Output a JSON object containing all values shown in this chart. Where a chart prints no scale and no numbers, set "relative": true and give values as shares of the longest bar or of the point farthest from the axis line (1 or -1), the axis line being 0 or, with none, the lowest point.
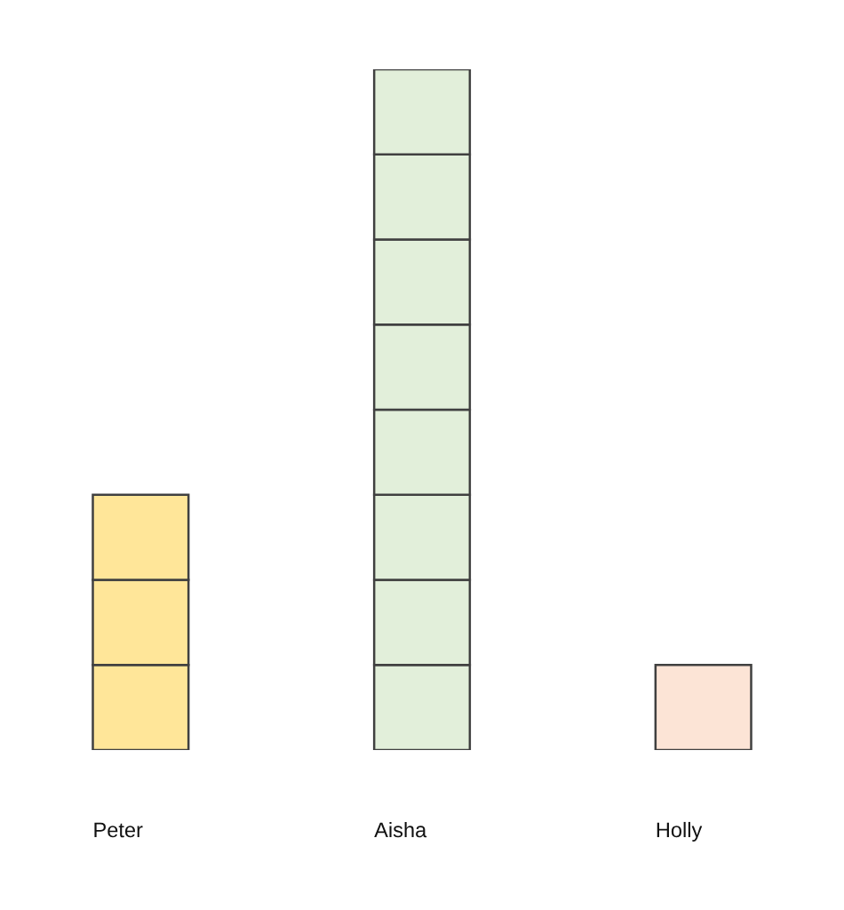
{
  "chart_data": {
    "type": "bar",
    "relative": true,
    "stacked": true,
    "categories": [
      "Peter",
      "Aisha",
      "Holly"
    ],
    "series": [
      {
        "values": [
          0.125,
          0.125,
          0.125
        ],
        "colors": [
          "#ffe699",
          "#e2efda",
          "#fce4d6"
        ]
      },
      {
        "values": [
          0.125,
          0.125,
          null
        ],
        "colors": [
          "#ffe699",
          "#e2efda",
          null
        ]
      },
      {
        "values": [
          0.125,
          0.125,
          null
        ],
        "colors": [
          "#ffe699",
          "#e2efda",
          null
        ]
      },
      {
        "values": [
          null,
          0.125,
          null
        ],
        "color": "#e2efda"
      },
      {
        "values": [
          null,
          0.125,
          null
        ],
        "color": "#e2efda"
      },
      {
        "values": [
          null,
          0.125,
          null
        ],
        "color": "#e2efda"
      },
      {
        "values": [
          null,
          0.125,
          null
        ],
        "color": "#e2efda"
      },
      {
        "values": [
          null,
          0.125,
          null
        ],
        "color": "#e2efda"
      }
    ]
  }
}
